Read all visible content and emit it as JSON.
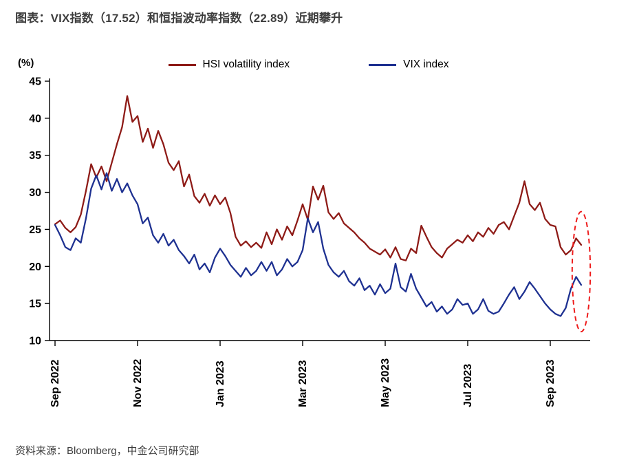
{
  "title": "图表：VIX指数（17.52）和恒指波动率指数（22.89）近期攀升",
  "source": "资料来源：Bloomberg，中金公司研究部",
  "chart_data": {
    "type": "line",
    "title": "VIX指数和恒指波动率指数",
    "xlabel": "",
    "ylabel": "(%)",
    "ylim": [
      10,
      45
    ],
    "grid": false,
    "legend_position": "top",
    "y_ticks": [
      10,
      15,
      20,
      25,
      30,
      35,
      40,
      45
    ],
    "x_ticks_months": [
      0,
      2,
      4,
      6,
      8,
      10,
      12
    ],
    "x_ticklabels": [
      "Sep 2022",
      "Nov 2022",
      "Jan 2023",
      "Mar 2023",
      "May 2023",
      "Jul 2023",
      "Sep 2023"
    ],
    "x_start_month": 0,
    "x_step": 0.125,
    "series": [
      {
        "name": "HSI volatility index",
        "color": "#8e1b17",
        "last_value": 22.89,
        "values": [
          25.7,
          26.2,
          25.2,
          24.6,
          25.3,
          27.0,
          30.2,
          33.8,
          32.0,
          33.5,
          31.5,
          34.0,
          36.5,
          38.8,
          43.0,
          39.5,
          40.3,
          36.8,
          38.6,
          36.0,
          38.3,
          36.5,
          34.0,
          33.0,
          34.2,
          30.8,
          32.4,
          29.5,
          28.6,
          29.8,
          28.2,
          29.6,
          28.4,
          29.3,
          27.2,
          24.0,
          22.8,
          23.4,
          22.6,
          23.2,
          22.5,
          24.6,
          23.0,
          25.0,
          23.6,
          25.4,
          24.2,
          26.2,
          28.4,
          26.3,
          30.8,
          29.0,
          30.9,
          27.3,
          26.4,
          27.2,
          25.8,
          25.2,
          24.6,
          23.8,
          23.2,
          22.4,
          22.0,
          21.6,
          22.3,
          21.2,
          22.6,
          21.0,
          20.8,
          22.4,
          21.8,
          25.5,
          24.0,
          22.6,
          21.8,
          21.2,
          22.4,
          23.0,
          23.6,
          23.2,
          24.2,
          23.4,
          24.6,
          24.0,
          25.2,
          24.4,
          25.6,
          26.0,
          25.0,
          26.8,
          28.6,
          31.5,
          28.4,
          27.6,
          28.6,
          26.4,
          25.6,
          25.4,
          22.6,
          21.6,
          22.2,
          23.8,
          22.9
        ]
      },
      {
        "name": "VIX index",
        "color": "#1e3191",
        "last_value": 17.52,
        "values": [
          25.6,
          24.2,
          22.6,
          22.2,
          23.8,
          23.2,
          26.5,
          30.5,
          32.3,
          30.4,
          32.6,
          30.2,
          31.8,
          30.0,
          31.2,
          29.6,
          28.4,
          25.8,
          26.6,
          24.2,
          23.2,
          24.4,
          22.8,
          23.6,
          22.2,
          21.4,
          20.4,
          21.6,
          19.6,
          20.4,
          19.2,
          21.2,
          22.4,
          21.4,
          20.2,
          19.4,
          18.6,
          19.8,
          18.8,
          19.4,
          20.6,
          19.4,
          20.6,
          18.8,
          19.6,
          21.0,
          20.0,
          20.6,
          22.2,
          26.5,
          24.6,
          26.0,
          22.4,
          20.2,
          19.2,
          18.6,
          19.4,
          18.0,
          17.4,
          18.4,
          16.8,
          17.4,
          16.2,
          17.6,
          16.4,
          17.0,
          20.4,
          17.2,
          16.6,
          19.0,
          17.0,
          15.8,
          14.6,
          15.2,
          13.9,
          14.6,
          13.6,
          14.2,
          15.6,
          14.8,
          15.0,
          13.6,
          14.2,
          15.6,
          14.0,
          13.6,
          13.9,
          15.0,
          16.2,
          17.2,
          15.6,
          16.6,
          17.9,
          17.0,
          16.0,
          15.0,
          14.2,
          13.6,
          13.3,
          14.4,
          17.0,
          18.6,
          17.5
        ]
      }
    ],
    "annotation": {
      "type": "dashed-ellipse",
      "meaning": "近期攀升 (recent climb) highlight",
      "color": "#ee1c1c",
      "center_month": 12.75,
      "center_value": 19.3,
      "rx_months": 0.22,
      "ry_values": 8.1
    }
  }
}
